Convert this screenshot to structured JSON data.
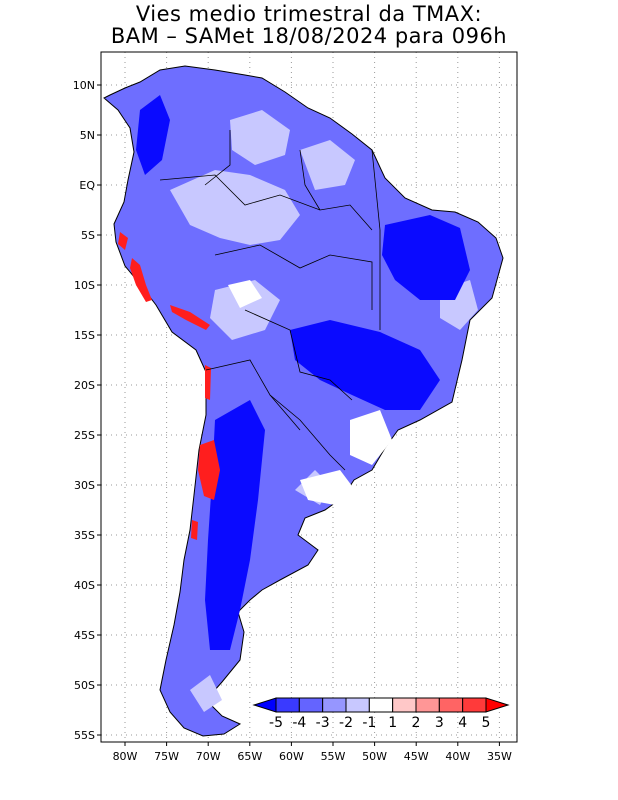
{
  "title": {
    "line1": "Vies medio trimestral da TMAX:",
    "line2": "BAM – SAMet 18/08/2024  para 096h"
  },
  "map": {
    "region": "South America",
    "lon_ticks": [
      "80W",
      "75W",
      "70W",
      "65W",
      "60W",
      "55W",
      "50W",
      "45W",
      "40W",
      "35W"
    ],
    "lat_ticks": [
      "10N",
      "5N",
      "EQ",
      "5S",
      "10S",
      "15S",
      "20S",
      "25S",
      "30S",
      "35S",
      "40S",
      "45S",
      "50S",
      "55S"
    ],
    "lon_range": [
      -82,
      -34
    ],
    "lat_range": [
      -56,
      12
    ],
    "grid": "dotted"
  },
  "colorbar": {
    "labels": [
      "-5",
      "-4",
      "-3",
      "-2",
      "-1",
      "1",
      "2",
      "3",
      "4",
      "5"
    ],
    "colors": [
      "#0000ff",
      "#3a3aff",
      "#6464ff",
      "#9696ff",
      "#c8c8ff",
      "#ffffff",
      "#ffc8c8",
      "#ff9696",
      "#ff6464",
      "#ff3a3a",
      "#ff0000"
    ]
  }
}
